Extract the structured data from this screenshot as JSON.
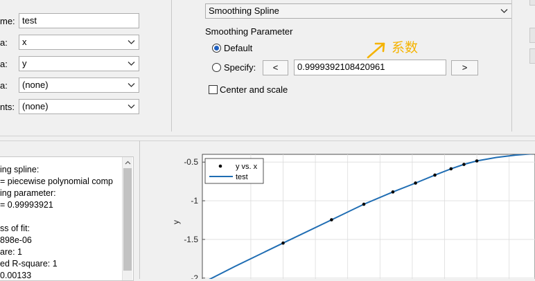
{
  "fit_options": {
    "fit_name": {
      "label": "me:",
      "value": "test"
    },
    "x_data": {
      "label": "a:",
      "value": "x"
    },
    "y_data": {
      "label": "a:",
      "value": "y"
    },
    "z_data": {
      "label": "a:",
      "value": "(none)"
    },
    "weights": {
      "label": "nts:",
      "value": "(none)"
    }
  },
  "method": {
    "selected": "Smoothing Spline",
    "param_title": "Smoothing Parameter",
    "default_label": "Default",
    "specify_label": "Specify:",
    "decrease_label": "<",
    "increase_label": ">",
    "param_value": "0.9999392108420961",
    "center_scale_label": "Center and scale",
    "default_selected": true,
    "center_scale_checked": false
  },
  "annotation": {
    "text": "系数",
    "color": "#f5b300"
  },
  "results": {
    "lines": [
      "ing spline:",
      " = piecewise polynomial comp",
      "ing parameter:",
      "= 0.99993921",
      "",
      "ss of fit:",
      "898e-06",
      "are: 1",
      "ed R-square: 1",
      " 0.00133"
    ]
  },
  "chart_data": {
    "type": "line",
    "ylabel": "y",
    "ylim": [
      -2.1,
      -0.4
    ],
    "xlim": [
      0.05,
      1.08
    ],
    "y_ticks": [
      -0.5,
      -1,
      -1.5,
      -2
    ],
    "y_tick_labels": [
      "-0.5",
      "-1",
      "-1.5",
      "-2"
    ],
    "grid": true,
    "legend_position": "top-left",
    "series": [
      {
        "name": "y vs. x",
        "style": "points",
        "color": "#000000",
        "x": [
          0.3,
          0.45,
          0.55,
          0.64,
          0.71,
          0.77,
          0.82,
          0.86,
          0.9
        ],
        "y": [
          -1.547,
          -1.246,
          -1.045,
          -0.886,
          -0.771,
          -0.668,
          -0.587,
          -0.53,
          -0.485
        ]
      },
      {
        "name": "test",
        "style": "line",
        "color": "#1f6db3",
        "x": [
          0.07,
          0.15,
          0.3,
          0.45,
          0.55,
          0.64,
          0.71,
          0.77,
          0.82,
          0.86,
          0.9,
          0.96,
          1.02,
          1.08
        ],
        "y": [
          -2.02,
          -1.85,
          -1.547,
          -1.246,
          -1.045,
          -0.886,
          -0.771,
          -0.668,
          -0.587,
          -0.53,
          -0.485,
          -0.44,
          -0.41,
          -0.39
        ]
      }
    ]
  }
}
